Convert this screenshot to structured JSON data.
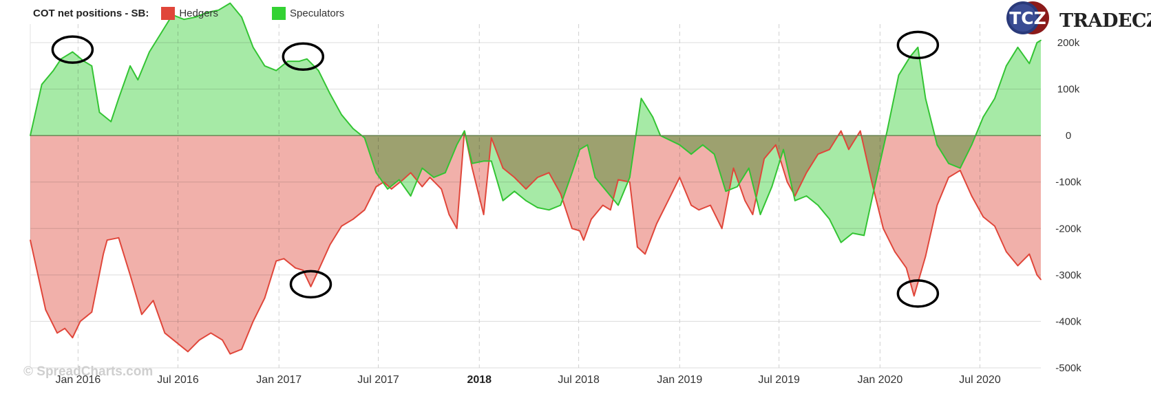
{
  "legend": {
    "title": "COT net positions - SB:",
    "hedgers_label": "Hedgers",
    "speculators_label": "Speculators"
  },
  "logo": {
    "mark": "TCZ",
    "name": "TRADECZ"
  },
  "watermark": "© SpreadCharts.com",
  "colors": {
    "hedgers_line": "#e0463a",
    "hedgers_fill": "#eea29b",
    "speculators_line": "#33c433",
    "speculators_fill": "#97e697",
    "overlap_fill": "#8fb466"
  },
  "chart_data": {
    "type": "area",
    "xlim": [
      "2015-10-06",
      "2020-10-20"
    ],
    "ylim": [
      -500,
      240
    ],
    "y_unit": "k",
    "yticks": [
      {
        "value": 200,
        "label": "200k"
      },
      {
        "value": 100,
        "label": "100k"
      },
      {
        "value": 0,
        "label": "0"
      },
      {
        "value": -100,
        "label": "-100k"
      },
      {
        "value": -200,
        "label": "-200k"
      },
      {
        "value": -300,
        "label": "-300k"
      },
      {
        "value": -400,
        "label": "-400k"
      },
      {
        "value": -500,
        "label": "-500k"
      }
    ],
    "xticks": [
      {
        "date": "2016-01-01",
        "label": "Jan 2016",
        "bold": false
      },
      {
        "date": "2016-07-01",
        "label": "Jul 2016",
        "bold": false
      },
      {
        "date": "2017-01-01",
        "label": "Jan 2017",
        "bold": false
      },
      {
        "date": "2017-07-01",
        "label": "Jul 2017",
        "bold": false
      },
      {
        "date": "2018-01-01",
        "label": "2018",
        "bold": true
      },
      {
        "date": "2018-07-01",
        "label": "Jul 2018",
        "bold": false
      },
      {
        "date": "2019-01-01",
        "label": "Jan 2019",
        "bold": false
      },
      {
        "date": "2019-07-01",
        "label": "Jul 2019",
        "bold": false
      },
      {
        "date": "2020-01-01",
        "label": "Jan 2020",
        "bold": false
      },
      {
        "date": "2020-07-01",
        "label": "Jul 2020",
        "bold": false
      }
    ],
    "grid": true,
    "legend_position": "top-left",
    "series": [
      {
        "name": "Hedgers",
        "points": [
          [
            "2015-10-06",
            -225
          ],
          [
            "2015-11-03",
            -375
          ],
          [
            "2015-11-24",
            -425
          ],
          [
            "2015-12-08",
            -415
          ],
          [
            "2015-12-22",
            -435
          ],
          [
            "2016-01-05",
            -400
          ],
          [
            "2016-01-26",
            -380
          ],
          [
            "2016-02-16",
            -255
          ],
          [
            "2016-02-23",
            -225
          ],
          [
            "2016-03-15",
            -220
          ],
          [
            "2016-04-05",
            -300
          ],
          [
            "2016-04-26",
            -385
          ],
          [
            "2016-05-17",
            -355
          ],
          [
            "2016-06-07",
            -425
          ],
          [
            "2016-06-28",
            -445
          ],
          [
            "2016-07-19",
            -465
          ],
          [
            "2016-08-09",
            -440
          ],
          [
            "2016-08-30",
            -425
          ],
          [
            "2016-09-20",
            -440
          ],
          [
            "2016-10-04",
            -470
          ],
          [
            "2016-10-25",
            -460
          ],
          [
            "2016-11-15",
            -400
          ],
          [
            "2016-12-06",
            -350
          ],
          [
            "2016-12-27",
            -270
          ],
          [
            "2017-01-10",
            -265
          ],
          [
            "2017-01-31",
            -285
          ],
          [
            "2017-02-14",
            -290
          ],
          [
            "2017-02-28",
            -325
          ],
          [
            "2017-03-14",
            -290
          ],
          [
            "2017-04-04",
            -235
          ],
          [
            "2017-04-25",
            -195
          ],
          [
            "2017-05-16",
            -180
          ],
          [
            "2017-06-06",
            -160
          ],
          [
            "2017-06-27",
            -110
          ],
          [
            "2017-07-11",
            -100
          ],
          [
            "2017-07-25",
            -115
          ],
          [
            "2017-08-15",
            -95
          ],
          [
            "2017-08-29",
            -80
          ],
          [
            "2017-09-19",
            -110
          ],
          [
            "2017-10-03",
            -90
          ],
          [
            "2017-10-24",
            -115
          ],
          [
            "2017-11-07",
            -170
          ],
          [
            "2017-11-21",
            -200
          ],
          [
            "2017-12-05",
            10
          ],
          [
            "2017-12-19",
            -70
          ],
          [
            "2018-01-09",
            -170
          ],
          [
            "2018-01-23",
            -5
          ],
          [
            "2018-02-13",
            -70
          ],
          [
            "2018-03-06",
            -90
          ],
          [
            "2018-03-27",
            -115
          ],
          [
            "2018-04-17",
            -90
          ],
          [
            "2018-05-08",
            -80
          ],
          [
            "2018-05-29",
            -125
          ],
          [
            "2018-06-19",
            -200
          ],
          [
            "2018-07-03",
            -205
          ],
          [
            "2018-07-10",
            -225
          ],
          [
            "2018-07-24",
            -180
          ],
          [
            "2018-08-14",
            -150
          ],
          [
            "2018-08-28",
            -160
          ],
          [
            "2018-09-11",
            -95
          ],
          [
            "2018-10-02",
            -100
          ],
          [
            "2018-10-16",
            -240
          ],
          [
            "2018-10-30",
            -255
          ],
          [
            "2018-11-20",
            -190
          ],
          [
            "2018-12-11",
            -140
          ],
          [
            "2019-01-01",
            -90
          ],
          [
            "2019-01-22",
            -150
          ],
          [
            "2019-02-05",
            -160
          ],
          [
            "2019-02-26",
            -150
          ],
          [
            "2019-03-19",
            -200
          ],
          [
            "2019-04-09",
            -70
          ],
          [
            "2019-04-30",
            -140
          ],
          [
            "2019-05-14",
            -170
          ],
          [
            "2019-06-04",
            -50
          ],
          [
            "2019-06-25",
            -20
          ],
          [
            "2019-07-16",
            -100
          ],
          [
            "2019-07-30",
            -130
          ],
          [
            "2019-08-20",
            -80
          ],
          [
            "2019-09-10",
            -40
          ],
          [
            "2019-10-01",
            -30
          ],
          [
            "2019-10-22",
            10
          ],
          [
            "2019-11-05",
            -30
          ],
          [
            "2019-11-26",
            10
          ],
          [
            "2019-12-17",
            -100
          ],
          [
            "2020-01-07",
            -200
          ],
          [
            "2020-01-28",
            -250
          ],
          [
            "2020-02-18",
            -285
          ],
          [
            "2020-03-03",
            -345
          ],
          [
            "2020-03-24",
            -260
          ],
          [
            "2020-04-14",
            -150
          ],
          [
            "2020-05-05",
            -90
          ],
          [
            "2020-05-26",
            -75
          ],
          [
            "2020-06-16",
            -130
          ],
          [
            "2020-07-07",
            -175
          ],
          [
            "2020-07-28",
            -195
          ],
          [
            "2020-08-18",
            -250
          ],
          [
            "2020-09-08",
            -280
          ],
          [
            "2020-09-29",
            -255
          ],
          [
            "2020-10-13",
            -300
          ],
          [
            "2020-10-20",
            -310
          ]
        ]
      },
      {
        "name": "Speculators",
        "points": [
          [
            "2015-10-06",
            0
          ],
          [
            "2015-10-27",
            110
          ],
          [
            "2015-11-17",
            140
          ],
          [
            "2015-12-01",
            165
          ],
          [
            "2015-12-22",
            180
          ],
          [
            "2016-01-12",
            160
          ],
          [
            "2016-01-26",
            150
          ],
          [
            "2016-02-09",
            50
          ],
          [
            "2016-03-01",
            30
          ],
          [
            "2016-03-15",
            80
          ],
          [
            "2016-04-05",
            150
          ],
          [
            "2016-04-19",
            120
          ],
          [
            "2016-05-10",
            180
          ],
          [
            "2016-05-31",
            220
          ],
          [
            "2016-06-21",
            260
          ],
          [
            "2016-07-12",
            250
          ],
          [
            "2016-08-02",
            255
          ],
          [
            "2016-08-23",
            265
          ],
          [
            "2016-09-13",
            270
          ],
          [
            "2016-10-04",
            285
          ],
          [
            "2016-10-25",
            255
          ],
          [
            "2016-11-15",
            190
          ],
          [
            "2016-12-06",
            150
          ],
          [
            "2016-12-27",
            140
          ],
          [
            "2017-01-17",
            160
          ],
          [
            "2017-02-07",
            160
          ],
          [
            "2017-02-21",
            165
          ],
          [
            "2017-03-14",
            140
          ],
          [
            "2017-04-04",
            90
          ],
          [
            "2017-04-25",
            45
          ],
          [
            "2017-05-16",
            15
          ],
          [
            "2017-06-06",
            -5
          ],
          [
            "2017-06-27",
            -80
          ],
          [
            "2017-07-18",
            -115
          ],
          [
            "2017-08-08",
            -95
          ],
          [
            "2017-08-29",
            -130
          ],
          [
            "2017-09-19",
            -70
          ],
          [
            "2017-10-10",
            -90
          ],
          [
            "2017-10-31",
            -80
          ],
          [
            "2017-11-21",
            -20
          ],
          [
            "2017-12-05",
            10
          ],
          [
            "2017-12-19",
            -60
          ],
          [
            "2018-01-09",
            -55
          ],
          [
            "2018-01-23",
            -55
          ],
          [
            "2018-02-13",
            -140
          ],
          [
            "2018-03-06",
            -120
          ],
          [
            "2018-03-27",
            -140
          ],
          [
            "2018-04-17",
            -155
          ],
          [
            "2018-05-08",
            -160
          ],
          [
            "2018-05-29",
            -150
          ],
          [
            "2018-06-19",
            -80
          ],
          [
            "2018-07-03",
            -30
          ],
          [
            "2018-07-17",
            -20
          ],
          [
            "2018-07-31",
            -90
          ],
          [
            "2018-08-21",
            -120
          ],
          [
            "2018-09-11",
            -150
          ],
          [
            "2018-10-02",
            -90
          ],
          [
            "2018-10-23",
            80
          ],
          [
            "2018-11-13",
            40
          ],
          [
            "2018-11-27",
            0
          ],
          [
            "2019-01-01",
            -20
          ],
          [
            "2019-01-22",
            -40
          ],
          [
            "2019-02-12",
            -20
          ],
          [
            "2019-03-05",
            -40
          ],
          [
            "2019-03-26",
            -120
          ],
          [
            "2019-04-16",
            -110
          ],
          [
            "2019-05-07",
            -70
          ],
          [
            "2019-05-28",
            -170
          ],
          [
            "2019-06-18",
            -110
          ],
          [
            "2019-07-09",
            -30
          ],
          [
            "2019-07-30",
            -140
          ],
          [
            "2019-08-20",
            -130
          ],
          [
            "2019-09-10",
            -150
          ],
          [
            "2019-10-01",
            -180
          ],
          [
            "2019-10-22",
            -230
          ],
          [
            "2019-11-12",
            -210
          ],
          [
            "2019-12-03",
            -215
          ],
          [
            "2019-12-24",
            -100
          ],
          [
            "2020-01-14",
            10
          ],
          [
            "2020-02-04",
            130
          ],
          [
            "2020-02-25",
            170
          ],
          [
            "2020-03-10",
            190
          ],
          [
            "2020-03-24",
            80
          ],
          [
            "2020-04-14",
            -20
          ],
          [
            "2020-05-05",
            -60
          ],
          [
            "2020-05-26",
            -70
          ],
          [
            "2020-06-16",
            -20
          ],
          [
            "2020-07-07",
            40
          ],
          [
            "2020-07-28",
            80
          ],
          [
            "2020-08-18",
            150
          ],
          [
            "2020-09-08",
            190
          ],
          [
            "2020-09-29",
            155
          ],
          [
            "2020-10-13",
            200
          ],
          [
            "2020-10-20",
            205
          ]
        ]
      }
    ],
    "annotations": [
      {
        "type": "ellipse",
        "date": "2015-12-22",
        "value": 185
      },
      {
        "type": "ellipse",
        "date": "2017-02-14",
        "value": 170
      },
      {
        "type": "ellipse",
        "date": "2017-02-28",
        "value": -320
      },
      {
        "type": "ellipse",
        "date": "2020-03-10",
        "value": 195
      },
      {
        "type": "ellipse",
        "date": "2020-03-10",
        "value": -340
      }
    ]
  }
}
